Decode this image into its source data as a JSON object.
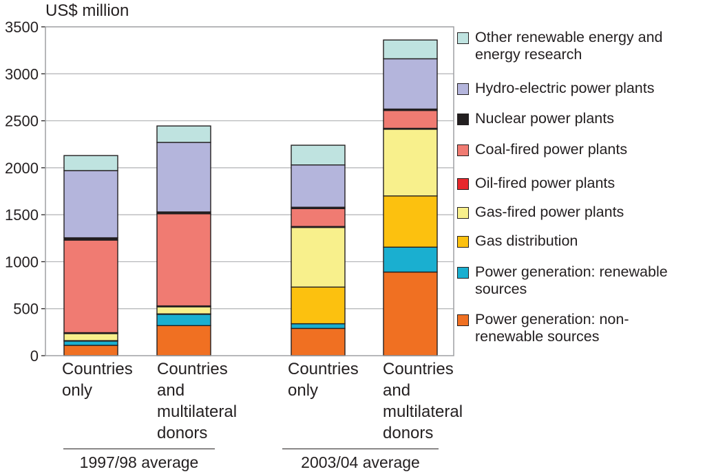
{
  "chart_data": {
    "type": "bar",
    "stacked": true,
    "title": "",
    "ylabel": "US$ million",
    "xlabel": "",
    "ylim": [
      0,
      3500
    ],
    "yticks": [
      0,
      500,
      1000,
      1500,
      2000,
      2500,
      3000,
      3500
    ],
    "grid": true,
    "legend_position": "right",
    "categories": [
      "Countries\nonly",
      "Countries\nand\nmultilateral\ndonors",
      "Countries\nonly",
      "Countries\nand\nmultilateral\ndonors"
    ],
    "groups": [
      {
        "label": "1997/98 average",
        "categories": [
          0,
          1
        ]
      },
      {
        "label": "2003/04 average",
        "categories": [
          2,
          3
        ]
      }
    ],
    "series": [
      {
        "name": "Power generation: non-\nrenewable sources",
        "color": "#f07022",
        "values": [
          110,
          320,
          290,
          890
        ]
      },
      {
        "name": "Power generation: renewable\nsources",
        "color": "#1aafd0",
        "values": [
          45,
          120,
          50,
          265
        ]
      },
      {
        "name": "Gas distribution",
        "color": "#fcc10f",
        "values": [
          5,
          5,
          390,
          545
        ]
      },
      {
        "name": "Gas-fired power plants",
        "color": "#f8f08c",
        "values": [
          75,
          75,
          635,
          710
        ]
      },
      {
        "name": "Oil-fired power plants",
        "color": "#e8272c",
        "values": [
          10,
          10,
          10,
          10
        ]
      },
      {
        "name": "Coal-fired power plants",
        "color": "#f07b72",
        "values": [
          985,
          980,
          190,
          190
        ]
      },
      {
        "name": "Nuclear power plants",
        "color": "#231f20",
        "values": [
          25,
          20,
          15,
          15
        ]
      },
      {
        "name": "Hydro-electric power plants",
        "color": "#b4b5dc",
        "values": [
          715,
          740,
          450,
          535
        ]
      },
      {
        "name": "Other renewable energy and\nenergy research",
        "color": "#bfe3e0",
        "values": [
          160,
          175,
          210,
          200
        ]
      }
    ]
  }
}
